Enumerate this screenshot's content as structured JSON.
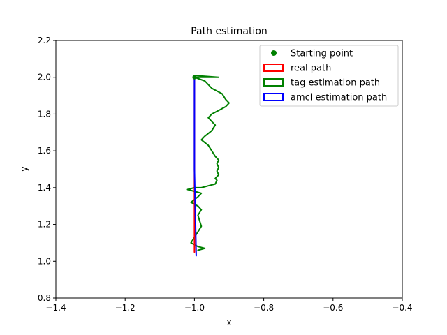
{
  "chart_data": {
    "type": "line",
    "title": "Path estimation",
    "xlabel": "x",
    "ylabel": "y",
    "xlim": [
      -1.4,
      -0.4
    ],
    "ylim": [
      0.8,
      2.2
    ],
    "xticks": [
      "-1.4",
      "-1.2",
      "-1.0",
      "-0.8",
      "-0.6",
      "-0.4"
    ],
    "xtick_values": [
      -1.4,
      -1.2,
      -1.0,
      -0.8,
      -0.6,
      -0.4
    ],
    "yticks": [
      "0.8",
      "1.0",
      "1.2",
      "1.4",
      "1.6",
      "1.8",
      "2.0",
      "2.2"
    ],
    "ytick_values": [
      0.8,
      1.0,
      1.2,
      1.4,
      1.6,
      1.8,
      2.0,
      2.2
    ],
    "grid": false,
    "legend_position": "top-right",
    "starting_point": {
      "name": "Starting point",
      "color": "#008000",
      "x": -1.0,
      "y": 2.0
    },
    "series": [
      {
        "name": "real path",
        "color": "#ff0000",
        "x": [
          -1.0,
          -1.0,
          -1.0
        ],
        "y": [
          2.0,
          1.4,
          1.05
        ]
      },
      {
        "name": "tag estimation path",
        "color": "#008000",
        "x": [
          -1.0,
          -0.93,
          -1.0,
          -0.97,
          -0.95,
          -0.93,
          -0.92,
          -0.91,
          -0.9,
          -0.91,
          -0.93,
          -0.95,
          -0.96,
          -0.95,
          -0.94,
          -0.95,
          -0.97,
          -0.98,
          -0.96,
          -0.95,
          -0.94,
          -0.93,
          -0.935,
          -0.93,
          -0.935,
          -0.93,
          -0.94,
          -0.935,
          -0.94,
          -0.96,
          -0.98,
          -1.0,
          -1.02,
          -1.0,
          -0.98,
          -0.99,
          -1.01,
          -0.99,
          -0.98,
          -0.99,
          -0.985,
          -0.98,
          -0.99,
          -1.0,
          -1.01,
          -0.99,
          -0.97,
          -0.99
        ],
        "y": [
          2.01,
          2.0,
          2.0,
          1.98,
          1.94,
          1.92,
          1.91,
          1.88,
          1.86,
          1.84,
          1.82,
          1.8,
          1.78,
          1.76,
          1.74,
          1.71,
          1.68,
          1.66,
          1.63,
          1.6,
          1.57,
          1.55,
          1.53,
          1.51,
          1.49,
          1.47,
          1.45,
          1.44,
          1.42,
          1.41,
          1.4,
          1.4,
          1.39,
          1.38,
          1.37,
          1.35,
          1.32,
          1.3,
          1.28,
          1.25,
          1.22,
          1.19,
          1.16,
          1.13,
          1.1,
          1.08,
          1.07,
          1.06
        ]
      },
      {
        "name": "amcl estimation path",
        "color": "#0000ff",
        "x": [
          -1.0,
          -1.0,
          -0.995
        ],
        "y": [
          2.0,
          1.5,
          1.03
        ]
      }
    ]
  }
}
